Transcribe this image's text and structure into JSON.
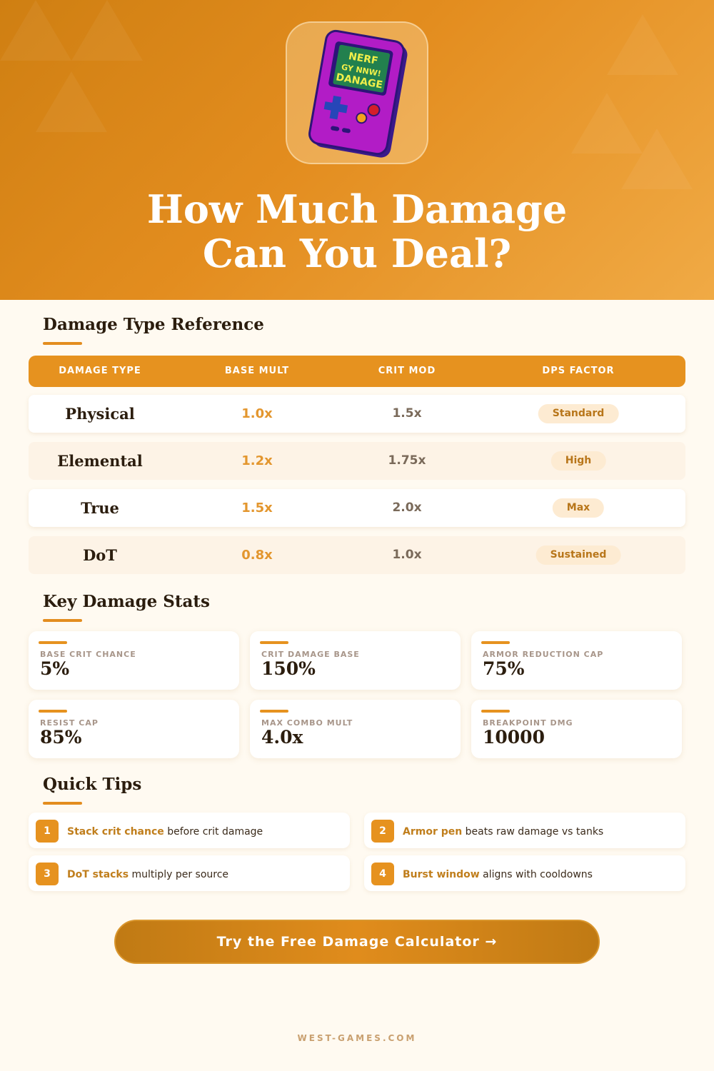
{
  "hero": {
    "title": "How Much Damage Can You Deal?",
    "logo_text": "NERF GY NNW! DANAGE",
    "logo_icon": "gameboy-icon"
  },
  "table": {
    "heading": "Damage Type Reference",
    "columns": [
      "DAMAGE TYPE",
      "BASE MULT",
      "CRIT MOD",
      "DPS FACTOR"
    ],
    "rows": [
      {
        "type": "Physical",
        "base": "1.0x",
        "crit": "1.5x",
        "dps": "Standard"
      },
      {
        "type": "Elemental",
        "base": "1.2x",
        "crit": "1.75x",
        "dps": "High"
      },
      {
        "type": "True",
        "base": "1.5x",
        "crit": "2.0x",
        "dps": "Max"
      },
      {
        "type": "DoT",
        "base": "0.8x",
        "crit": "1.0x",
        "dps": "Sustained"
      }
    ]
  },
  "stats": {
    "heading": "Key Damage Stats",
    "items": [
      {
        "label": "BASE CRIT CHANCE",
        "value": "5%"
      },
      {
        "label": "CRIT DAMAGE BASE",
        "value": "150%"
      },
      {
        "label": "ARMOR REDUCTION CAP",
        "value": "75%"
      },
      {
        "label": "RESIST CAP",
        "value": "85%"
      },
      {
        "label": "MAX COMBO MULT",
        "value": "4.0x"
      },
      {
        "label": "BREAKPOINT DMG",
        "value": "10000"
      }
    ]
  },
  "tips": {
    "heading": "Quick Tips",
    "items": [
      {
        "n": "1",
        "bold": "Stack crit chance",
        "rest": " before crit damage"
      },
      {
        "n": "2",
        "bold": "Armor pen",
        "rest": " beats raw damage vs tanks"
      },
      {
        "n": "3",
        "bold": "DoT stacks",
        "rest": " multiply per source"
      },
      {
        "n": "4",
        "bold": "Burst window",
        "rest": " aligns with cooldowns"
      }
    ]
  },
  "cta": {
    "label": "Try the Free Damage Calculator →"
  },
  "footer": {
    "site": "WEST-GAMES.COM"
  },
  "colors": {
    "accent": "#e6921f",
    "text": "#2b1d0e",
    "background": "#fffaf1"
  }
}
